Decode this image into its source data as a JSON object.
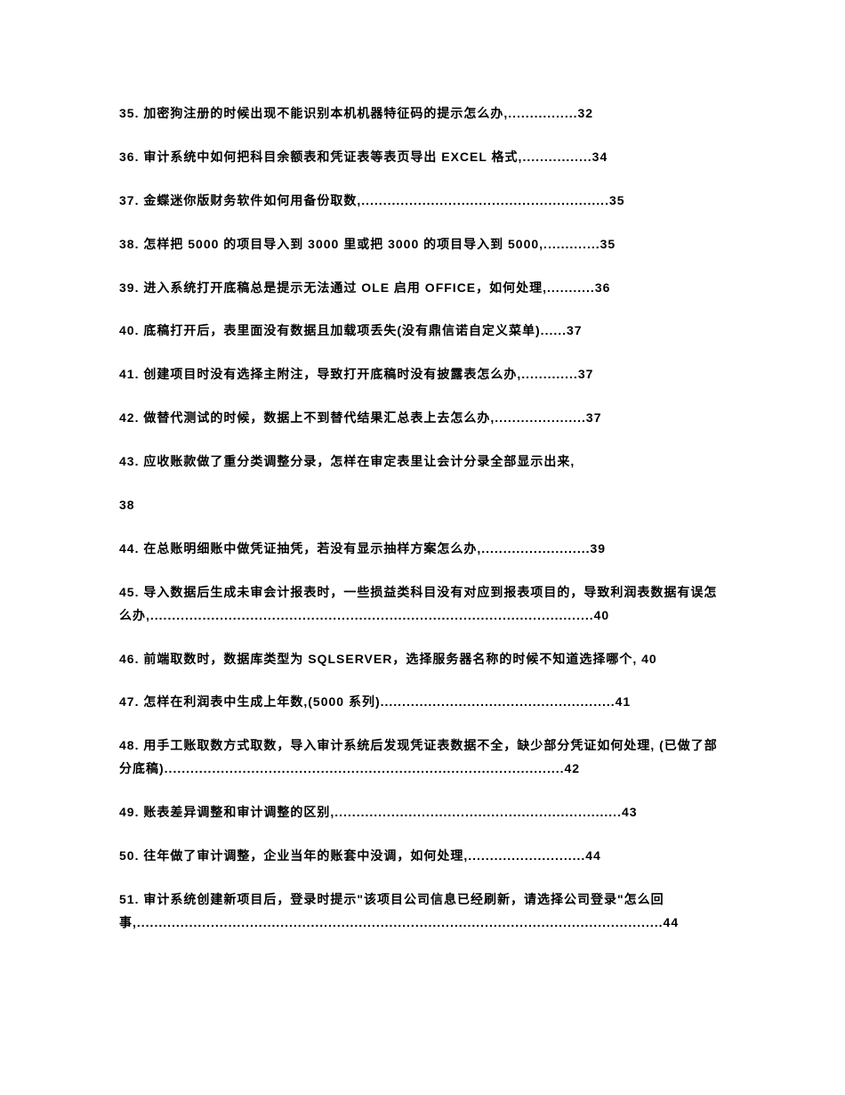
{
  "entries": [
    {
      "num": "35.",
      "text": "加密狗注册的时候出现不能识别本机机器特征码的提示怎么办,................32"
    },
    {
      "num": "36.",
      "text": "审计系统中如何把科目余额表和凭证表等表页导出 EXCEL 格式,................34"
    },
    {
      "num": "37.",
      "text": "金蝶迷你版财务软件如何用备份取数,.........................................................35"
    },
    {
      "num": "38.",
      "text": "怎样把 5000 的项目导入到 3000 里或把 3000 的项目导入到 5000,.............35"
    },
    {
      "num": "39.",
      "text": "进入系统打开底稿总是提示无法通过 OLE 启用 OFFICE，如何处理,...........36"
    },
    {
      "num": "40.",
      "text": "底稿打开后，表里面没有数据且加载项丢失(没有鼎信诺自定义菜单)......37"
    },
    {
      "num": "41.",
      "text": "创建项目时没有选择主附注，导致打开底稿时没有披露表怎么办,.............37"
    },
    {
      "num": "42.",
      "text": "做替代测试的时候，数据上不到替代结果汇总表上去怎么办,.....................37"
    },
    {
      "num": "43.",
      "text": "应收账款做了重分类调整分录，怎样在审定表里让会计分录全部显示出来,"
    },
    {
      "standalone": "38"
    },
    {
      "num": "44.",
      "text": "在总账明细账中做凭证抽凭，若没有显示抽样方案怎么办,.........................39"
    },
    {
      "num": "45.",
      "text": "导入数据后生成未审会计报表时，一些损益类科目没有对应到报表项目的，导致利润表数据有误怎么办,......................................................................................................40"
    },
    {
      "num": "46.",
      "text": "前端取数时，数据库类型为 SQLSERVER，选择服务器名称的时候不知道选择哪个, 40"
    },
    {
      "num": "47.",
      "text": "怎样在利润表中生成上年数,(5000 系列)......................................................41"
    },
    {
      "num": "48.",
      "text": "用手工账取数方式取数，导入审计系统后发现凭证表数据不全，缺少部分凭证如何处理, (已做了部分底稿)............................................................................................42"
    },
    {
      "num": "49.",
      "text": "账表差异调整和审计调整的区别,..................................................................43"
    },
    {
      "num": "50.",
      "text": "往年做了审计调整，企业当年的账套中没调，如何处理,...........................44"
    },
    {
      "num": "51.",
      "text": "审计系统创建新项目后，登录时提示\"该项目公司信息已经刷新，请选择公司登录\"怎么回事,.........................................................................................................................44"
    }
  ]
}
